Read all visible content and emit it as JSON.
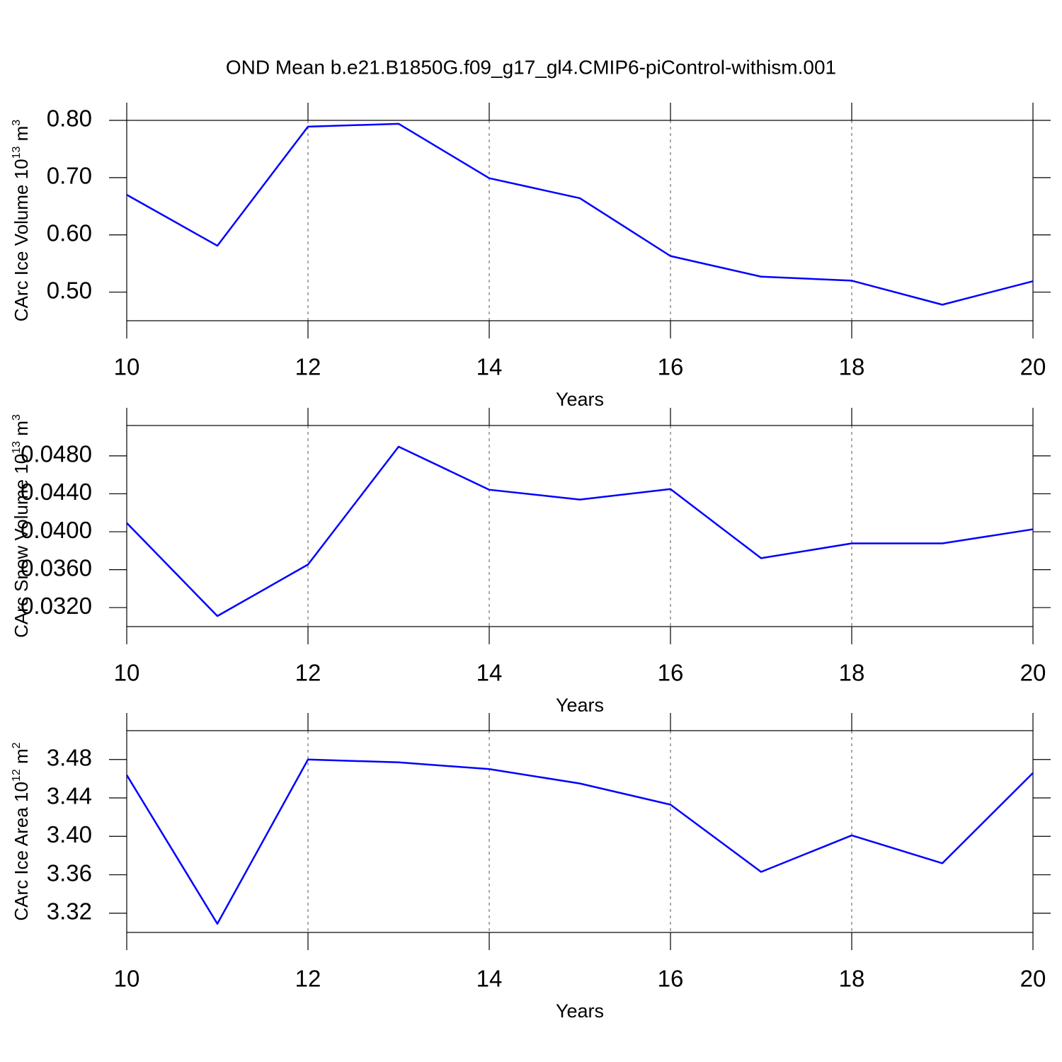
{
  "chart_data": [
    {
      "type": "line",
      "title": "OND Mean b.e21.B1850G.f09_g17_gl4.CMIP6-piControl-withism.001",
      "ylabel_parts": [
        {
          "text": "CArc Ice Volume 10"
        },
        {
          "text": "13",
          "sup": true
        },
        {
          "text": " m"
        },
        {
          "text": "3",
          "sup": true
        }
      ],
      "xlabel": "Years",
      "x": [
        10,
        11,
        12,
        13,
        14,
        15,
        16,
        17,
        18,
        19,
        20
      ],
      "series": [
        {
          "color": "#0000ff",
          "values": [
            0.67,
            0.581,
            0.789,
            0.794,
            0.699,
            0.664,
            0.563,
            0.527,
            0.52,
            0.478,
            0.519
          ]
        }
      ],
      "xlim": [
        10,
        20
      ],
      "xticks": [
        10,
        12,
        14,
        16,
        18,
        20
      ],
      "ylim": [
        0.45,
        0.8
      ],
      "yticks": [
        {
          "value": 0.5,
          "label": "0.50"
        },
        {
          "value": 0.6,
          "label": "0.60"
        },
        {
          "value": 0.7,
          "label": "0.70"
        },
        {
          "value": 0.8,
          "label": "0.80"
        }
      ],
      "xgrid": true
    },
    {
      "type": "line",
      "ylabel_parts": [
        {
          "text": "CArc Snow Volume 10"
        },
        {
          "text": "13",
          "sup": true
        },
        {
          "text": " m"
        },
        {
          "text": "3",
          "sup": true
        }
      ],
      "xlabel": "Years",
      "x": [
        10,
        11,
        12,
        13,
        14,
        15,
        16,
        17,
        18,
        19,
        20
      ],
      "series": [
        {
          "color": "#0000ff",
          "values": [
            0.04093,
            0.03111,
            0.03654,
            0.04897,
            0.04443,
            0.04339,
            0.0445,
            0.03721,
            0.03877,
            0.03877,
            0.04026
          ]
        }
      ],
      "xlim": [
        10,
        20
      ],
      "xticks": [
        10,
        12,
        14,
        16,
        18,
        20
      ],
      "ylim": [
        0.03,
        0.0512
      ],
      "yticks": [
        {
          "value": 0.032,
          "label": "0.0320"
        },
        {
          "value": 0.036,
          "label": "0.0360"
        },
        {
          "value": 0.04,
          "label": "0.0400"
        },
        {
          "value": 0.044,
          "label": "0.0440"
        },
        {
          "value": 0.048,
          "label": "0.0480"
        }
      ],
      "xgrid": true
    },
    {
      "type": "line",
      "ylabel_parts": [
        {
          "text": "CArc Ice Area 10"
        },
        {
          "text": "12",
          "sup": true
        },
        {
          "text": " m"
        },
        {
          "text": "2",
          "sup": true
        }
      ],
      "xlabel": "Years",
      "x": [
        10,
        11,
        12,
        13,
        14,
        15,
        16,
        17,
        18,
        19,
        20
      ],
      "series": [
        {
          "color": "#0000ff",
          "values": [
            3.4638,
            3.309,
            3.48,
            3.477,
            3.47,
            3.455,
            3.433,
            3.363,
            3.401,
            3.372,
            3.466
          ]
        }
      ],
      "xlim": [
        10,
        20
      ],
      "xticks": [
        10,
        12,
        14,
        16,
        18,
        20
      ],
      "ylim": [
        3.3,
        3.51
      ],
      "yticks": [
        {
          "value": 3.32,
          "label": "3.32"
        },
        {
          "value": 3.36,
          "label": "3.36"
        },
        {
          "value": 3.4,
          "label": "3.40"
        },
        {
          "value": 3.44,
          "label": "3.44"
        },
        {
          "value": 3.48,
          "label": "3.48"
        }
      ],
      "xgrid": true
    }
  ]
}
